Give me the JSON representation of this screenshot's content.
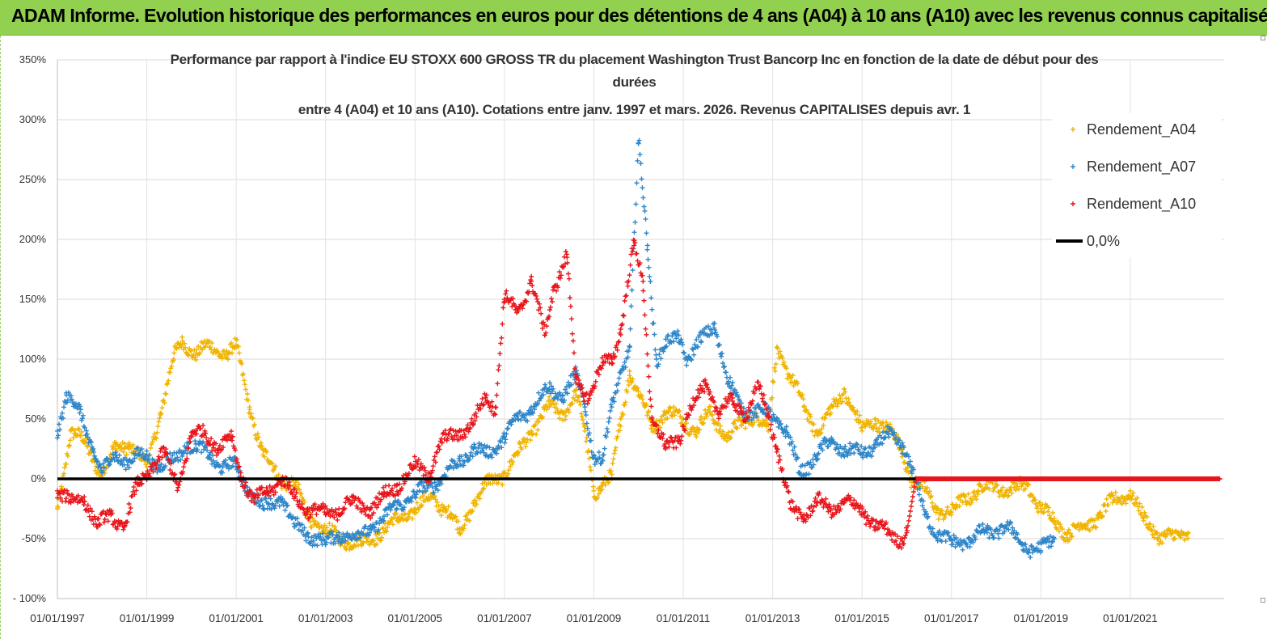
{
  "banner": {
    "title": "ADAM Informe. Evolution historique des performances en euros pour des détentions de 4 ans (A04) à 10 ans (A10) avec les revenus connus capitalisés",
    "color": "#92d050"
  },
  "chart_data": {
    "type": "scatter",
    "title_lines": [
      "Performance par rapport à l'indice EU STOXX 600 GROSS TR  du placement Washington Trust Bancorp Inc en fonction de la date de début pour des",
      "durées",
      "entre 4 (A04) et 10 ans (A10).  Cotations entre janv. 1997 et mars. 2026. Revenus CAPITALISES depuis avr. 1"
    ],
    "xlabel": "",
    "ylabel": "",
    "x_range_years": [
      1997,
      2023.1
    ],
    "ylim": [
      -100,
      350
    ],
    "y_ticks": [
      -100,
      -50,
      0,
      50,
      100,
      150,
      200,
      250,
      300,
      350
    ],
    "y_tick_labels": [
      "- 100%",
      "-50%",
      "0%",
      "50%",
      "100%",
      "150%",
      "200%",
      "250%",
      "300%",
      "350%"
    ],
    "x_ticks": [
      1997,
      1999,
      2001,
      2003,
      2005,
      2007,
      2009,
      2011,
      2013,
      2015,
      2017,
      2019,
      2021
    ],
    "x_tick_labels": [
      "01/01/1997",
      "01/01/1999",
      "01/01/2001",
      "01/01/2003",
      "01/01/2005",
      "01/01/2007",
      "01/01/2009",
      "01/01/2011",
      "01/01/2013",
      "01/01/2015",
      "01/01/2017",
      "01/01/2019",
      "01/01/2021"
    ],
    "legend_position": "top-right",
    "series": [
      {
        "name": "Rendement_A04",
        "color": "#f0b400",
        "marker": "+",
        "x": [
          1997.0,
          1997.3,
          1997.6,
          1998.0,
          1998.3,
          1998.6,
          1999.0,
          1999.3,
          1999.6,
          1999.8,
          2000.1,
          2000.4,
          2000.8,
          2001.0,
          2001.3,
          2001.6,
          2002.0,
          2002.3,
          2002.6,
          2003.0,
          2003.4,
          2003.8,
          2004.2,
          2004.6,
          2005.0,
          2005.4,
          2005.8,
          2006.0,
          2006.3,
          2006.6,
          2007.0,
          2007.3,
          2007.6,
          2008.0,
          2008.3,
          2008.6,
          2008.8,
          2009.0,
          2009.2,
          2009.4,
          2009.6,
          2009.8,
          2010.0,
          2010.3,
          2010.6,
          2011.0,
          2011.3,
          2011.6,
          2012.0,
          2012.3,
          2012.6,
          2012.9,
          2013.1,
          2013.4,
          2013.7,
          2014.0,
          2014.3,
          2014.6,
          2015.0,
          2015.3,
          2015.6,
          2015.9,
          2016.1,
          2016.4,
          2016.7,
          2017.0,
          2017.3,
          2017.6,
          2018.0,
          2018.3,
          2018.7,
          2019.0,
          2019.3,
          2019.6,
          2020.0,
          2020.3,
          2020.6,
          2021.0,
          2021.3,
          2021.6,
          2022.0,
          2022.3
        ],
        "y": [
          -25,
          40,
          30,
          5,
          25,
          30,
          10,
          55,
          100,
          115,
          105,
          110,
          105,
          110,
          60,
          20,
          0,
          -5,
          -30,
          -45,
          -50,
          -55,
          -45,
          -35,
          -25,
          -15,
          -30,
          -45,
          -20,
          -5,
          5,
          20,
          40,
          60,
          55,
          70,
          40,
          -10,
          -5,
          0,
          50,
          90,
          70,
          45,
          55,
          50,
          40,
          55,
          35,
          45,
          55,
          40,
          110,
          85,
          60,
          40,
          55,
          75,
          40,
          50,
          40,
          25,
          0,
          -10,
          -25,
          -30,
          -15,
          -10,
          -5,
          -10,
          -5,
          -25,
          -35,
          -45,
          -40,
          -30,
          -20,
          -10,
          -35,
          -45,
          -50,
          -45
        ]
      },
      {
        "name": "Rendement_A07",
        "color": "#2e86c9",
        "marker": "+",
        "x": [
          1997.0,
          1997.2,
          1997.5,
          1997.8,
          1998.0,
          1998.3,
          1998.6,
          1999.0,
          1999.3,
          1999.6,
          1999.9,
          2000.1,
          2000.4,
          2000.7,
          2001.0,
          2001.3,
          2001.6,
          2002.0,
          2002.3,
          2002.6,
          2003.0,
          2003.3,
          2003.7,
          2004.0,
          2004.3,
          2004.6,
          2005.0,
          2005.3,
          2005.6,
          2006.0,
          2006.3,
          2006.6,
          2007.0,
          2007.3,
          2007.6,
          2008.0,
          2008.3,
          2008.6,
          2008.8,
          2009.0,
          2009.2,
          2009.4,
          2009.6,
          2009.8,
          2010.0,
          2010.2,
          2010.4,
          2010.6,
          2010.9,
          2011.1,
          2011.4,
          2011.7,
          2012.0,
          2012.3,
          2012.6,
          2012.9,
          2013.1,
          2013.3,
          2013.6,
          2014.0,
          2014.3,
          2014.6,
          2015.0,
          2015.3,
          2015.6,
          2015.9,
          2016.1,
          2016.4,
          2016.7,
          2017.0,
          2017.4,
          2017.8,
          2018.2,
          2018.6,
          2019.0,
          2019.3
        ],
        "y": [
          40,
          70,
          55,
          25,
          5,
          20,
          15,
          20,
          10,
          15,
          30,
          25,
          20,
          10,
          10,
          -10,
          -25,
          -15,
          -40,
          -45,
          -55,
          -45,
          -50,
          -40,
          -35,
          -20,
          -15,
          -5,
          0,
          15,
          25,
          20,
          35,
          50,
          60,
          75,
          70,
          85,
          60,
          20,
          15,
          60,
          90,
          110,
          280,
          195,
          100,
          110,
          120,
          100,
          115,
          130,
          80,
          60,
          55,
          55,
          50,
          40,
          5,
          20,
          30,
          25,
          20,
          30,
          35,
          30,
          10,
          -30,
          -45,
          -55,
          -50,
          -45,
          -40,
          -55,
          -60,
          -50
        ]
      },
      {
        "name": "Rendement_A10",
        "color": "#e8161c",
        "marker": "+",
        "x": [
          1997.0,
          1997.3,
          1997.6,
          1997.9,
          1998.2,
          1998.5,
          1998.8,
          1999.1,
          1999.4,
          1999.7,
          2000.0,
          2000.3,
          2000.6,
          2000.9,
          2001.1,
          2001.4,
          2001.7,
          2002.0,
          2002.3,
          2002.6,
          2003.0,
          2003.3,
          2003.6,
          2004.0,
          2004.3,
          2004.6,
          2005.0,
          2005.3,
          2005.6,
          2006.0,
          2006.3,
          2006.6,
          2006.8,
          2007.0,
          2007.3,
          2007.6,
          2007.9,
          2008.1,
          2008.4,
          2008.6,
          2008.9,
          2009.2,
          2009.4,
          2009.6,
          2009.9,
          2010.1,
          2010.3,
          2010.6,
          2010.9,
          2011.2,
          2011.5,
          2011.8,
          2012.1,
          2012.4,
          2012.7,
          2012.9,
          2013.1,
          2013.4,
          2013.7,
          2014.0,
          2014.3,
          2014.6,
          2015.0,
          2015.3,
          2015.6,
          2015.9,
          2016.0,
          2016.2,
          2017.0,
          2018.0,
          2019.0,
          2020.0,
          2021.0,
          2022.0,
          2023.0
        ],
        "y": [
          -10,
          -20,
          -15,
          -40,
          -30,
          -40,
          -5,
          10,
          20,
          -5,
          35,
          40,
          25,
          35,
          5,
          -20,
          -10,
          0,
          -15,
          -25,
          -30,
          -25,
          -20,
          -25,
          -15,
          -5,
          10,
          5,
          30,
          40,
          45,
          70,
          60,
          150,
          140,
          165,
          120,
          160,
          185,
          80,
          70,
          95,
          100,
          125,
          195,
          165,
          50,
          25,
          35,
          60,
          80,
          55,
          65,
          55,
          75,
          55,
          25,
          -25,
          -30,
          -20,
          -25,
          -20,
          -25,
          -40,
          -45,
          -50,
          -45,
          0,
          0,
          0,
          0,
          0,
          0,
          0,
          0
        ]
      },
      {
        "name": "0,0%",
        "color": "#000000",
        "type": "line",
        "x": [
          1997.0,
          2016.2
        ],
        "y": [
          0,
          0
        ]
      }
    ]
  }
}
